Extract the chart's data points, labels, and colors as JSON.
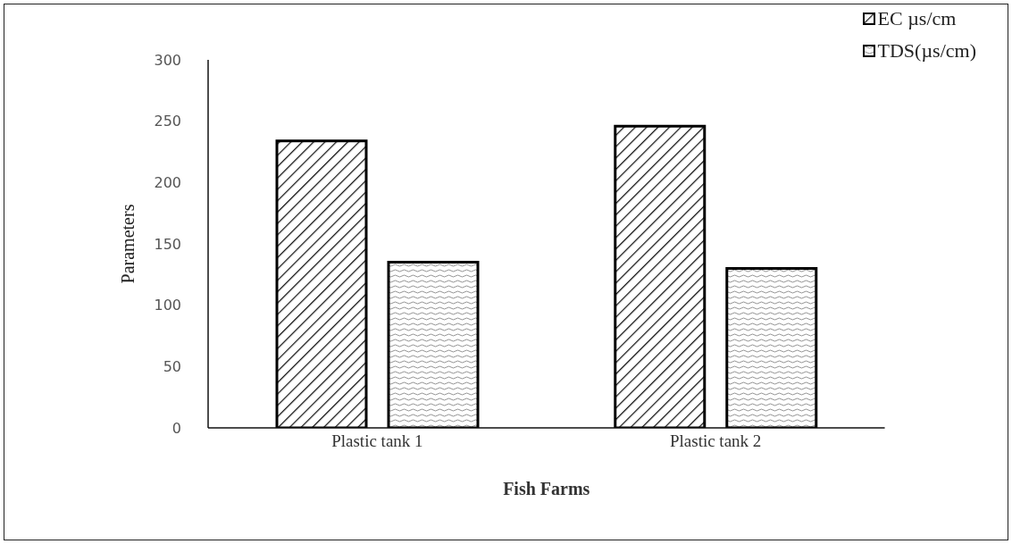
{
  "chart_data": {
    "type": "bar",
    "xlabel": "Fish Farms",
    "ylabel": "Parameters",
    "categories": [
      "Plastic tank 1",
      "Plastic tank 2"
    ],
    "series": [
      {
        "name": "EC µs/cm",
        "color": "#000000",
        "values": [
          234,
          246
        ]
      },
      {
        "name": "TDS(µs/cm)",
        "color": "#000000",
        "values": [
          135,
          130
        ]
      }
    ],
    "ylim": [
      0,
      300
    ],
    "yticks": [
      0,
      50,
      100,
      150,
      200,
      250,
      300
    ],
    "grid": false,
    "legend": "top right"
  }
}
